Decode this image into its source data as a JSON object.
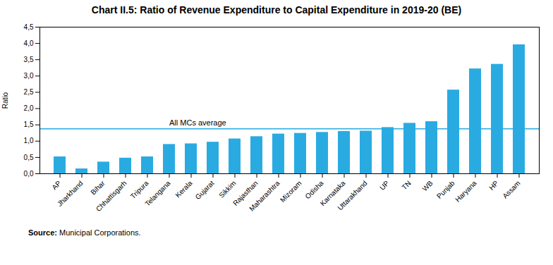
{
  "chart_data": {
    "type": "bar",
    "title": "Chart II.5: Ratio of Revenue Expenditure to Capital Expenditure in 2019-20 (BE)",
    "categories": [
      "AP",
      "Jharkhand",
      "Bihar",
      "Chhattisgarh",
      "Tripura",
      "Telangana",
      "Kerala",
      "Gujarat",
      "Sikkim",
      "Rajasthan",
      "Maharashtra",
      "Mizoram",
      "Odisha",
      "Karnataka",
      "Uttarakhand",
      "UP",
      "TN",
      "WB",
      "Punjab",
      "Haryana",
      "HP",
      "Assam"
    ],
    "values": [
      0.52,
      0.15,
      0.36,
      0.48,
      0.52,
      0.9,
      0.92,
      0.97,
      1.07,
      1.14,
      1.22,
      1.24,
      1.27,
      1.3,
      1.31,
      1.42,
      1.55,
      1.6,
      2.57,
      3.22,
      3.36,
      3.96
    ],
    "color": "#29abe2",
    "ylabel": "Ratio",
    "ylim": [
      0,
      4.5
    ],
    "yticks": [
      {
        "value": 0.0,
        "label": "0,0"
      },
      {
        "value": 0.5,
        "label": "0,5"
      },
      {
        "value": 1.0,
        "label": "1,0"
      },
      {
        "value": 1.5,
        "label": "1,5"
      },
      {
        "value": 2.0,
        "label": "2,0"
      },
      {
        "value": 2.5,
        "label": "2,5"
      },
      {
        "value": 3.0,
        "label": "3,0"
      },
      {
        "value": 3.5,
        "label": "3,5"
      },
      {
        "value": 4.0,
        "label": "4,0"
      },
      {
        "value": 4.5,
        "label": "4,5"
      }
    ],
    "grid": false,
    "average_line": {
      "value": 1.38,
      "label": "All MCs average",
      "color": "#29abe2"
    },
    "source_label": "Source:",
    "source": "Municipal Corporations."
  }
}
